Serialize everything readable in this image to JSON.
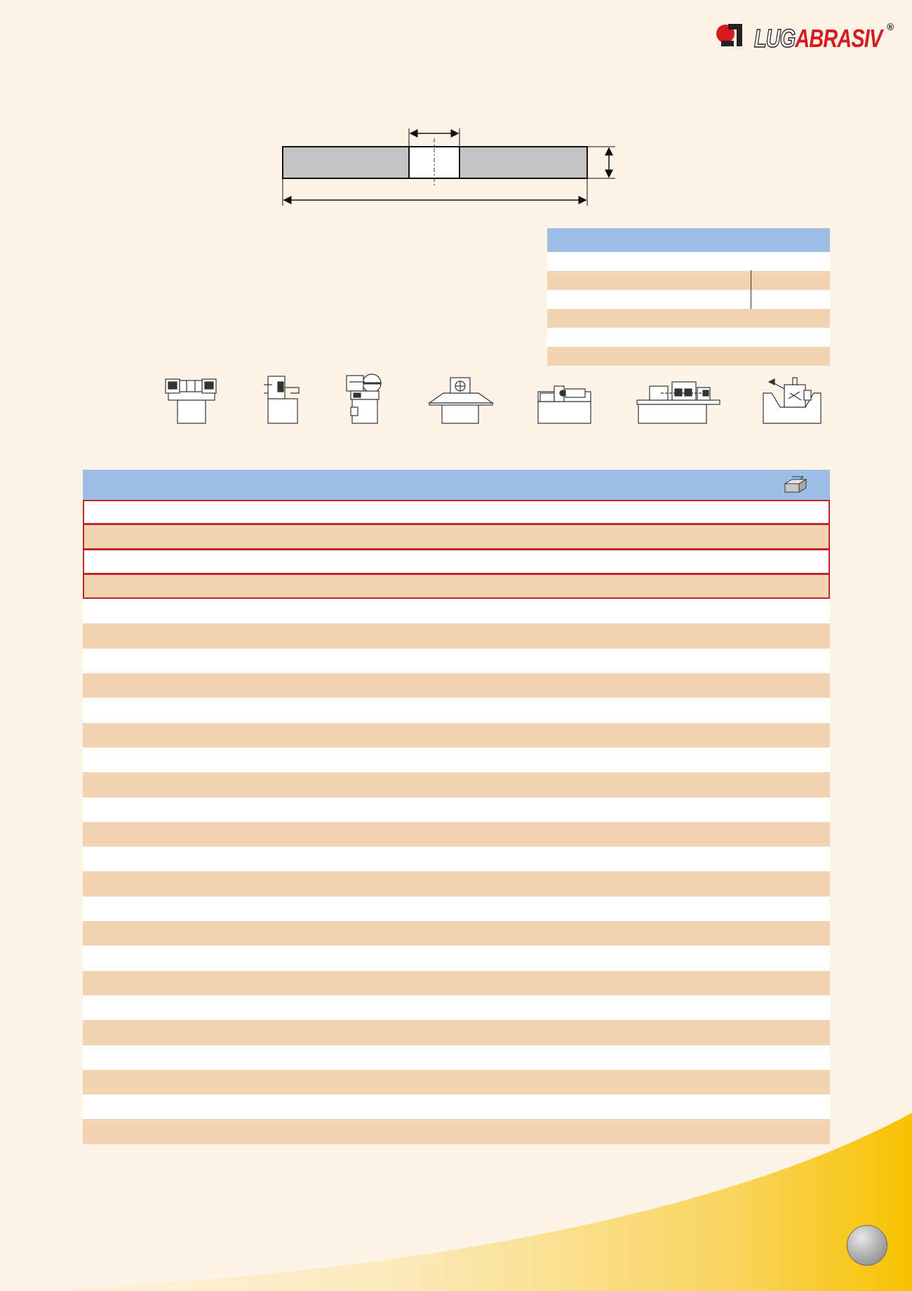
{
  "brand": {
    "logo_part1": "LUG",
    "logo_part2": "ABRASIV",
    "registered": "®"
  },
  "colors": {
    "background": "#fdf4e7",
    "header_blue": "#9dbfe5",
    "row_tan": "#f2d4b3",
    "row_white": "#ffffff",
    "highlight_border": "#c0272d",
    "accent_yellow": "#f7c500"
  },
  "icons": {
    "machines": [
      "bench-grinder-icon",
      "pedestal-grinder-icon",
      "cutoff-machine-icon",
      "surface-grinder-icon",
      "cylindrical-grinder-icon",
      "centerless-grinder-icon",
      "tool-grinder-icon"
    ],
    "table_header": "abrasive-block-icon"
  }
}
